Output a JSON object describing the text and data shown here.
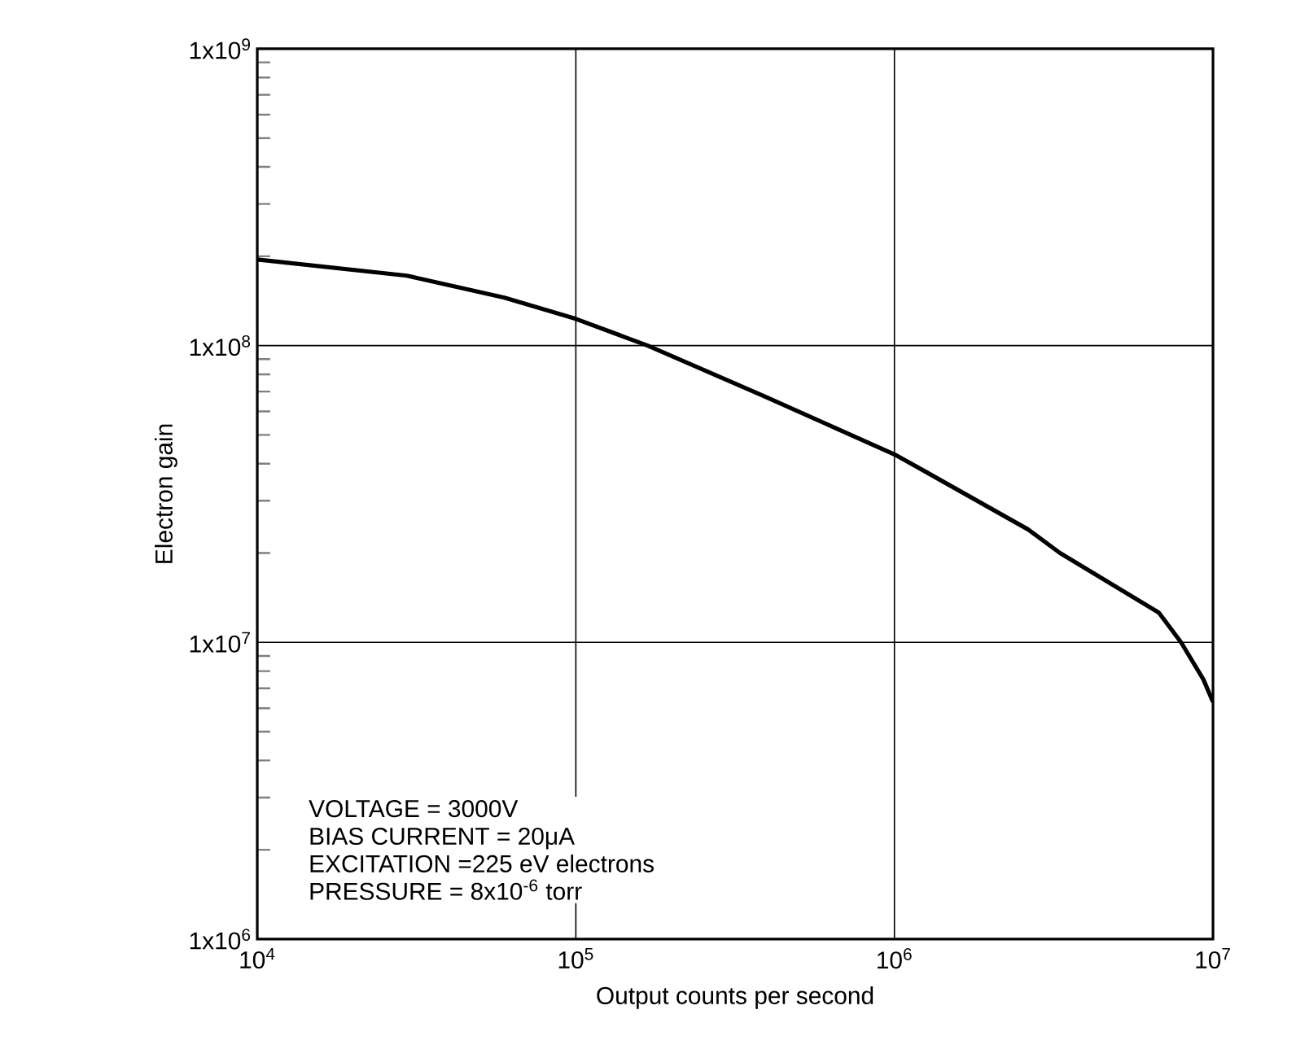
{
  "chart_data": {
    "type": "line",
    "xlabel": "Output counts per second",
    "ylabel": "Electron gain",
    "log": "xy",
    "grid": true,
    "marker": "none",
    "line_style": "solid",
    "xlim": [
      10000,
      10000000
    ],
    "ylim": [
      1000000,
      1000000000
    ],
    "xticks": [
      {
        "value": 10000,
        "label": "10$^{4}$"
      },
      {
        "value": 100000,
        "label": "10$^{5}$"
      },
      {
        "value": 1000000,
        "label": "10$^{6}$"
      },
      {
        "value": 10000000,
        "label": "10$^{7}$"
      }
    ],
    "yticks": [
      {
        "value": 1000000,
        "label": "1x10$^{6}$"
      },
      {
        "value": 10000000,
        "label": "1x10$^{7}$"
      },
      {
        "value": 100000000,
        "label": "1x10$^{8}$"
      },
      {
        "value": 1000000000,
        "label": "1x10$^{9}$"
      }
    ],
    "series": [
      {
        "color": "#000000",
        "x": [
          10000,
          29500,
          59700,
          100000,
          168000,
          389000,
          1000000,
          1230000,
          2630000,
          3310000,
          6760000,
          7940000,
          9330000,
          10000000
        ],
        "values": [
          195000000,
          172000000,
          145000000,
          123000000,
          100000000,
          67600000,
          43000000,
          38000000,
          24000000,
          20000000,
          12600000,
          10000000,
          7500000,
          6300000
        ]
      }
    ],
    "annotations": [
      "VOLTAGE = 3000V",
      "BIAS CURRENT = 20μA",
      "EXCITATION =225 eV electrons",
      "PRESSURE = 8x10$^{-6}$ torr"
    ]
  }
}
